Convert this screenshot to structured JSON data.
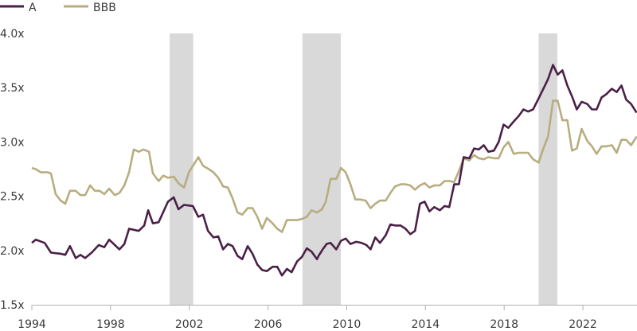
{
  "chart_data": {
    "type": "line",
    "title": "",
    "xlabel": "",
    "ylabel": "",
    "xlim": [
      1994,
      2024.75
    ],
    "ylim": [
      1.5,
      4.0
    ],
    "grid": false,
    "legend_placement": "top-left",
    "y_ticks": [
      {
        "value": 1.5,
        "label": "1.5x"
      },
      {
        "value": 2.0,
        "label": "2.0x"
      },
      {
        "value": 2.5,
        "label": "2.5x"
      },
      {
        "value": 3.0,
        "label": "3.0x"
      },
      {
        "value": 3.5,
        "label": "3.5x"
      },
      {
        "value": 4.0,
        "label": "4.0x"
      }
    ],
    "x_ticks": [
      {
        "value": 1994,
        "label": "1994"
      },
      {
        "value": 1998,
        "label": "1998"
      },
      {
        "value": 2002,
        "label": "2002"
      },
      {
        "value": 2006,
        "label": "2006"
      },
      {
        "value": 2010,
        "label": "2010"
      },
      {
        "value": 2014,
        "label": "2014"
      },
      {
        "value": 2018,
        "label": "2018"
      },
      {
        "value": 2022,
        "label": "2022"
      }
    ],
    "shaded_periods": [
      [
        2001.0,
        2002.2
      ],
      [
        2007.75,
        2009.7
      ],
      [
        2019.75,
        2020.7
      ]
    ],
    "shade_color": "#d9d9d9",
    "series": [
      {
        "name": "A",
        "color": "#4b2047",
        "x": [
          1994.0,
          1994.2,
          1994.65,
          1994.97,
          1995.46,
          1995.7,
          1995.94,
          1996.23,
          1996.47,
          1996.71,
          1997.04,
          1997.4,
          1997.68,
          1997.93,
          1998.45,
          1998.7,
          1998.94,
          1999.43,
          1999.71,
          1999.91,
          2000.15,
          2000.44,
          2000.92,
          2001.21,
          2001.45,
          2001.73,
          2002.18,
          2002.46,
          2002.7,
          2002.95,
          2003.23,
          2003.47,
          2003.72,
          2003.96,
          2004.2,
          2004.45,
          2004.69,
          2004.97,
          2005.21,
          2005.46,
          2005.7,
          2005.94,
          2006.23,
          2006.47,
          2006.71,
          2006.96,
          2007.2,
          2007.48,
          2007.72,
          2007.97,
          2008.21,
          2008.49,
          2008.57,
          2008.78,
          2008.98,
          2009.18,
          2009.47,
          2009.71,
          2009.95,
          2010.19,
          2010.48,
          2010.76,
          2011.0,
          2011.21,
          2011.45,
          2011.69,
          2011.98,
          2012.22,
          2012.46,
          2012.74,
          2012.99,
          2013.23,
          2013.47,
          2013.72,
          2013.96,
          2014.2,
          2014.45,
          2014.73,
          2014.97,
          2015.21,
          2015.46,
          2015.7,
          2015.94,
          2016.23,
          2016.47,
          2016.71,
          2016.96,
          2017.2,
          2017.48,
          2017.72,
          2017.97,
          2018.21,
          2018.49,
          2018.74,
          2018.98,
          2019.22,
          2019.47,
          2019.75,
          2019.99,
          2020.23,
          2020.48,
          2020.72,
          2020.96,
          2021.21,
          2021.45,
          2021.69,
          2021.94,
          2022.22,
          2022.46,
          2022.7,
          2022.95,
          2023.19,
          2023.47,
          2023.72,
          2023.96,
          2024.2,
          2024.45,
          2024.73
        ],
        "values": [
          2.07,
          2.1,
          2.07,
          1.98,
          1.97,
          1.96,
          2.04,
          1.93,
          1.96,
          1.93,
          1.98,
          2.05,
          2.03,
          2.1,
          2.01,
          2.06,
          2.2,
          2.18,
          2.23,
          2.37,
          2.25,
          2.26,
          2.45,
          2.49,
          2.38,
          2.42,
          2.41,
          2.31,
          2.33,
          2.18,
          2.12,
          2.13,
          2.01,
          2.06,
          2.04,
          1.95,
          1.92,
          2.04,
          1.97,
          1.87,
          1.82,
          1.81,
          1.85,
          1.85,
          1.77,
          1.83,
          1.8,
          1.9,
          1.94,
          2.02,
          1.99,
          1.92,
          1.95,
          2.01,
          2.06,
          2.07,
          2.01,
          2.09,
          2.11,
          2.06,
          2.08,
          2.07,
          2.05,
          2.01,
          2.12,
          2.07,
          2.14,
          2.24,
          2.23,
          2.23,
          2.2,
          2.15,
          2.18,
          2.43,
          2.45,
          2.36,
          2.4,
          2.37,
          2.41,
          2.4,
          2.61,
          2.61,
          2.86,
          2.85,
          2.94,
          2.93,
          2.97,
          2.91,
          2.92,
          3.0,
          3.16,
          3.13,
          3.19,
          3.24,
          3.3,
          3.28,
          3.3,
          3.4,
          3.49,
          3.58,
          3.71,
          3.62,
          3.66,
          3.52,
          3.42,
          3.3,
          3.37,
          3.35,
          3.3,
          3.3,
          3.41,
          3.44,
          3.49,
          3.46,
          3.52,
          3.39,
          3.35,
          3.27
        ]
      },
      {
        "name": "BBB",
        "color": "#b8ad80",
        "x": [
          1994.0,
          1994.2,
          1994.45,
          1994.81,
          1994.97,
          1995.21,
          1995.46,
          1995.7,
          1995.94,
          1996.23,
          1996.47,
          1996.71,
          1996.96,
          1997.2,
          1997.44,
          1997.68,
          1997.93,
          1998.21,
          1998.45,
          1998.7,
          1998.94,
          1999.18,
          1999.43,
          1999.67,
          1999.95,
          2000.15,
          2000.44,
          2000.68,
          2000.92,
          2001.21,
          2001.45,
          2001.73,
          2001.98,
          2002.22,
          2002.46,
          2002.7,
          2002.99,
          2003.23,
          2003.47,
          2003.72,
          2003.96,
          2004.2,
          2004.45,
          2004.69,
          2004.97,
          2005.21,
          2005.46,
          2005.7,
          2005.94,
          2006.23,
          2006.47,
          2006.71,
          2006.96,
          2007.2,
          2007.48,
          2007.72,
          2007.97,
          2008.21,
          2008.49,
          2008.57,
          2008.74,
          2008.94,
          2009.18,
          2009.47,
          2009.71,
          2009.95,
          2010.19,
          2010.44,
          2010.68,
          2010.96,
          2011.21,
          2011.45,
          2011.69,
          2011.98,
          2012.22,
          2012.46,
          2012.74,
          2012.99,
          2013.23,
          2013.47,
          2013.72,
          2013.96,
          2014.2,
          2014.45,
          2014.73,
          2014.97,
          2015.21,
          2015.46,
          2015.7,
          2015.94,
          2016.23,
          2016.47,
          2016.71,
          2016.96,
          2017.2,
          2017.48,
          2017.72,
          2017.97,
          2018.21,
          2018.49,
          2018.74,
          2018.98,
          2019.22,
          2019.47,
          2019.75,
          2019.99,
          2020.23,
          2020.48,
          2020.72,
          2020.96,
          2021.21,
          2021.45,
          2021.69,
          2021.94,
          2022.22,
          2022.46,
          2022.7,
          2022.95,
          2023.19,
          2023.47,
          2023.72,
          2023.96,
          2024.2,
          2024.45,
          2024.73
        ],
        "values": [
          2.76,
          2.75,
          2.72,
          2.72,
          2.71,
          2.52,
          2.46,
          2.43,
          2.55,
          2.55,
          2.51,
          2.51,
          2.6,
          2.55,
          2.55,
          2.52,
          2.57,
          2.51,
          2.53,
          2.6,
          2.72,
          2.93,
          2.91,
          2.93,
          2.91,
          2.71,
          2.64,
          2.69,
          2.67,
          2.68,
          2.62,
          2.58,
          2.72,
          2.79,
          2.86,
          2.78,
          2.75,
          2.72,
          2.67,
          2.59,
          2.58,
          2.48,
          2.35,
          2.33,
          2.39,
          2.39,
          2.31,
          2.2,
          2.3,
          2.25,
          2.2,
          2.17,
          2.28,
          2.28,
          2.28,
          2.29,
          2.31,
          2.37,
          2.35,
          2.36,
          2.38,
          2.45,
          2.66,
          2.66,
          2.76,
          2.72,
          2.61,
          2.47,
          2.47,
          2.46,
          2.39,
          2.43,
          2.46,
          2.46,
          2.53,
          2.59,
          2.61,
          2.61,
          2.6,
          2.56,
          2.6,
          2.62,
          2.58,
          2.6,
          2.6,
          2.64,
          2.64,
          2.63,
          2.73,
          2.85,
          2.83,
          2.88,
          2.85,
          2.84,
          2.86,
          2.85,
          2.85,
          2.95,
          3.0,
          2.89,
          2.9,
          2.9,
          2.9,
          2.84,
          2.81,
          2.94,
          3.05,
          3.38,
          3.38,
          3.2,
          3.2,
          2.92,
          2.94,
          3.12,
          3.01,
          2.96,
          2.89,
          2.96,
          2.96,
          2.97,
          2.9,
          3.02,
          3.02,
          2.97,
          3.05
        ]
      }
    ]
  }
}
